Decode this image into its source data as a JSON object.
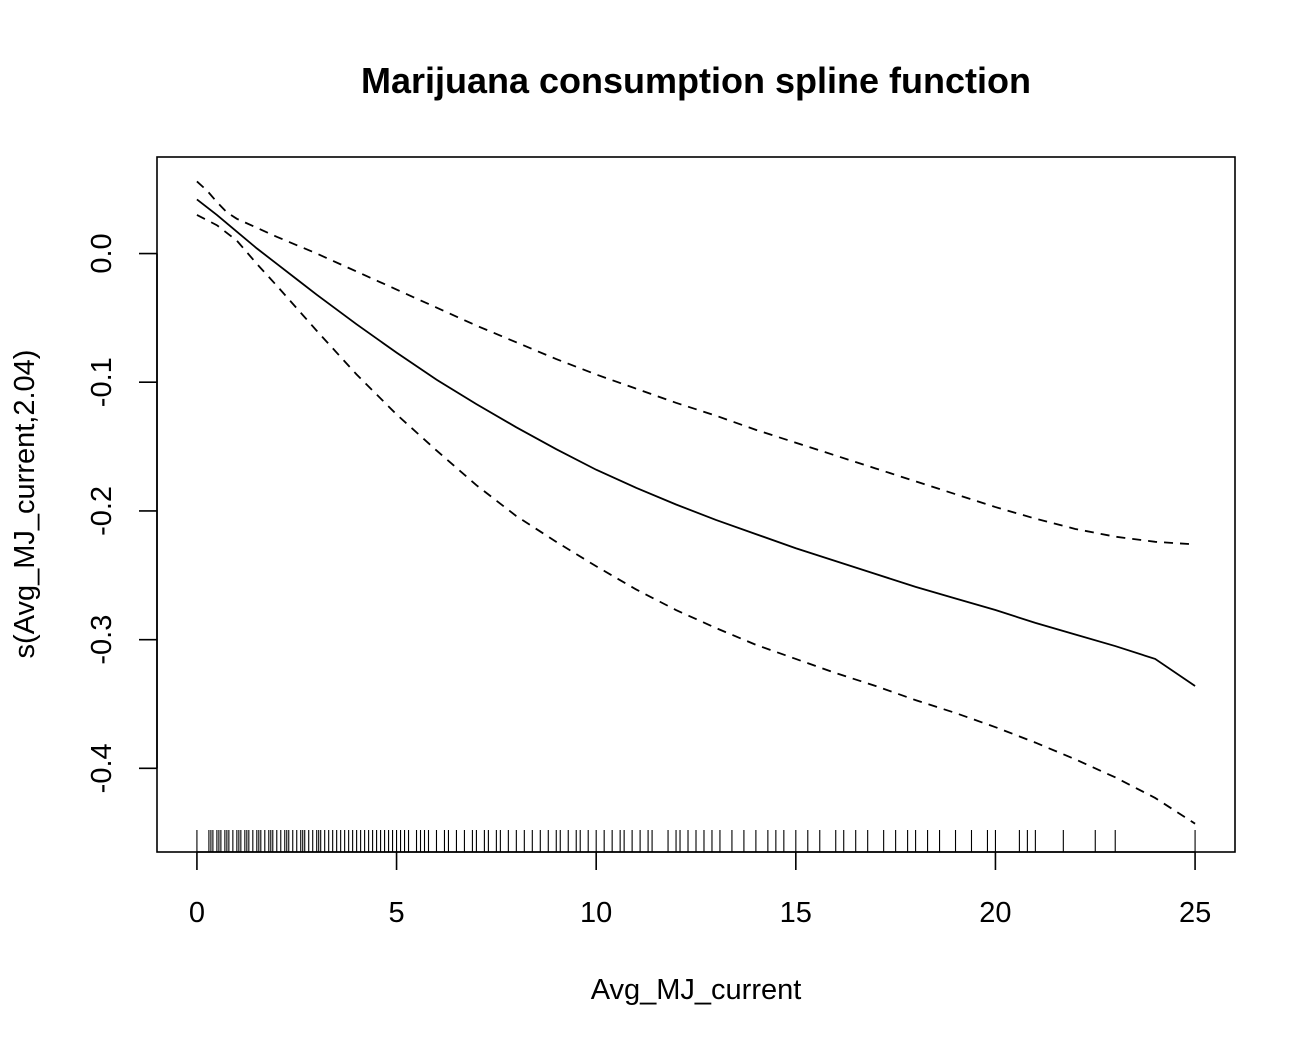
{
  "chart_data": {
    "type": "line",
    "title": "Marijuana consumption spline function",
    "xlabel": "Avg_MJ_current",
    "ylabel": "s(Avg_MJ_current,2.04)",
    "xlim": [
      -1,
      26
    ],
    "ylim": [
      -0.465,
      0.075
    ],
    "x_ticks": [
      0,
      5,
      10,
      15,
      20,
      25
    ],
    "x_tick_labels": [
      "0",
      "5",
      "10",
      "15",
      "20",
      "25"
    ],
    "y_ticks": [
      0.0,
      -0.1,
      -0.2,
      -0.3,
      -0.4
    ],
    "y_tick_labels": [
      "0.0",
      "-0.1",
      "-0.2",
      "-0.3",
      "-0.4"
    ],
    "grid": false,
    "legend": "none",
    "series": [
      {
        "style": "solid",
        "x": [
          0,
          0.5,
          1,
          1.5,
          2,
          2.5,
          3,
          4,
          5,
          6,
          7,
          8,
          9,
          10,
          11,
          12,
          13,
          14,
          15,
          16,
          17,
          18,
          19,
          20,
          21,
          22,
          23,
          24,
          25
        ],
        "y": [
          0.042,
          0.03,
          0.017,
          0.004,
          -0.008,
          -0.02,
          -0.032,
          -0.055,
          -0.077,
          -0.098,
          -0.117,
          -0.135,
          -0.152,
          -0.168,
          -0.182,
          -0.195,
          -0.207,
          -0.218,
          -0.229,
          -0.239,
          -0.249,
          -0.259,
          -0.268,
          -0.277,
          -0.287,
          -0.296,
          -0.305,
          -0.315,
          -0.336
        ]
      },
      {
        "style": "dashed",
        "x": [
          0,
          0.25,
          0.5,
          0.75,
          1,
          2,
          3,
          4,
          5,
          6,
          7,
          8,
          9,
          10,
          11,
          12,
          13,
          14,
          15,
          16,
          17,
          18,
          19,
          20,
          21,
          22,
          23,
          24,
          25
        ],
        "y": [
          0.056,
          0.049,
          0.04,
          0.032,
          0.027,
          0.013,
          0.0,
          -0.014,
          -0.028,
          -0.042,
          -0.056,
          -0.069,
          -0.082,
          -0.094,
          -0.105,
          -0.116,
          -0.126,
          -0.137,
          -0.147,
          -0.157,
          -0.167,
          -0.177,
          -0.187,
          -0.197,
          -0.206,
          -0.214,
          -0.22,
          -0.224,
          -0.226
        ]
      },
      {
        "style": "dashed",
        "x": [
          0,
          0.5,
          1,
          1.5,
          2,
          3,
          4,
          5,
          6,
          7,
          8,
          9,
          10,
          11,
          12,
          13,
          14,
          15,
          16,
          17,
          18,
          19,
          20,
          21,
          22,
          23,
          24,
          25
        ],
        "y": [
          0.03,
          0.022,
          0.01,
          -0.008,
          -0.025,
          -0.06,
          -0.094,
          -0.125,
          -0.153,
          -0.18,
          -0.204,
          -0.224,
          -0.243,
          -0.261,
          -0.277,
          -0.291,
          -0.304,
          -0.315,
          -0.326,
          -0.336,
          -0.347,
          -0.357,
          -0.368,
          -0.38,
          -0.393,
          -0.407,
          -0.423,
          -0.443
        ]
      }
    ],
    "rug": [
      0,
      0.3,
      0.35,
      0.4,
      0.5,
      0.55,
      0.6,
      0.7,
      0.75,
      0.8,
      0.9,
      1.0,
      1.05,
      1.1,
      1.2,
      1.25,
      1.3,
      1.4,
      1.5,
      1.55,
      1.6,
      1.7,
      1.8,
      1.85,
      1.9,
      2.0,
      2.1,
      2.2,
      2.25,
      2.3,
      2.4,
      2.5,
      2.6,
      2.65,
      2.7,
      2.8,
      2.9,
      3.0,
      3.05,
      3.1,
      3.2,
      3.3,
      3.4,
      3.5,
      3.6,
      3.7,
      3.8,
      3.9,
      4.0,
      4.1,
      4.2,
      4.3,
      4.4,
      4.5,
      4.6,
      4.7,
      4.8,
      4.9,
      5.0,
      5.1,
      5.2,
      5.3,
      5.5,
      5.6,
      5.7,
      5.8,
      6.0,
      6.2,
      6.3,
      6.5,
      6.7,
      6.9,
      7.0,
      7.2,
      7.3,
      7.5,
      7.6,
      7.8,
      8.0,
      8.2,
      8.4,
      8.6,
      8.8,
      9.0,
      9.1,
      9.3,
      9.5,
      9.6,
      9.8,
      10.0,
      10.2,
      10.4,
      10.6,
      10.7,
      10.9,
      11.1,
      11.3,
      11.4,
      11.8,
      12.0,
      12.1,
      12.3,
      12.5,
      12.7,
      12.9,
      13.1,
      13.4,
      13.7,
      14.0,
      14.3,
      14.5,
      14.7,
      15.0,
      15.3,
      15.6,
      16.0,
      16.2,
      16.5,
      16.8,
      17.2,
      17.5,
      17.8,
      18.0,
      18.3,
      18.6,
      19.0,
      19.4,
      19.8,
      20.0,
      20.6,
      20.8,
      21.0,
      21.7,
      22.5,
      23.0,
      25.0
    ]
  }
}
